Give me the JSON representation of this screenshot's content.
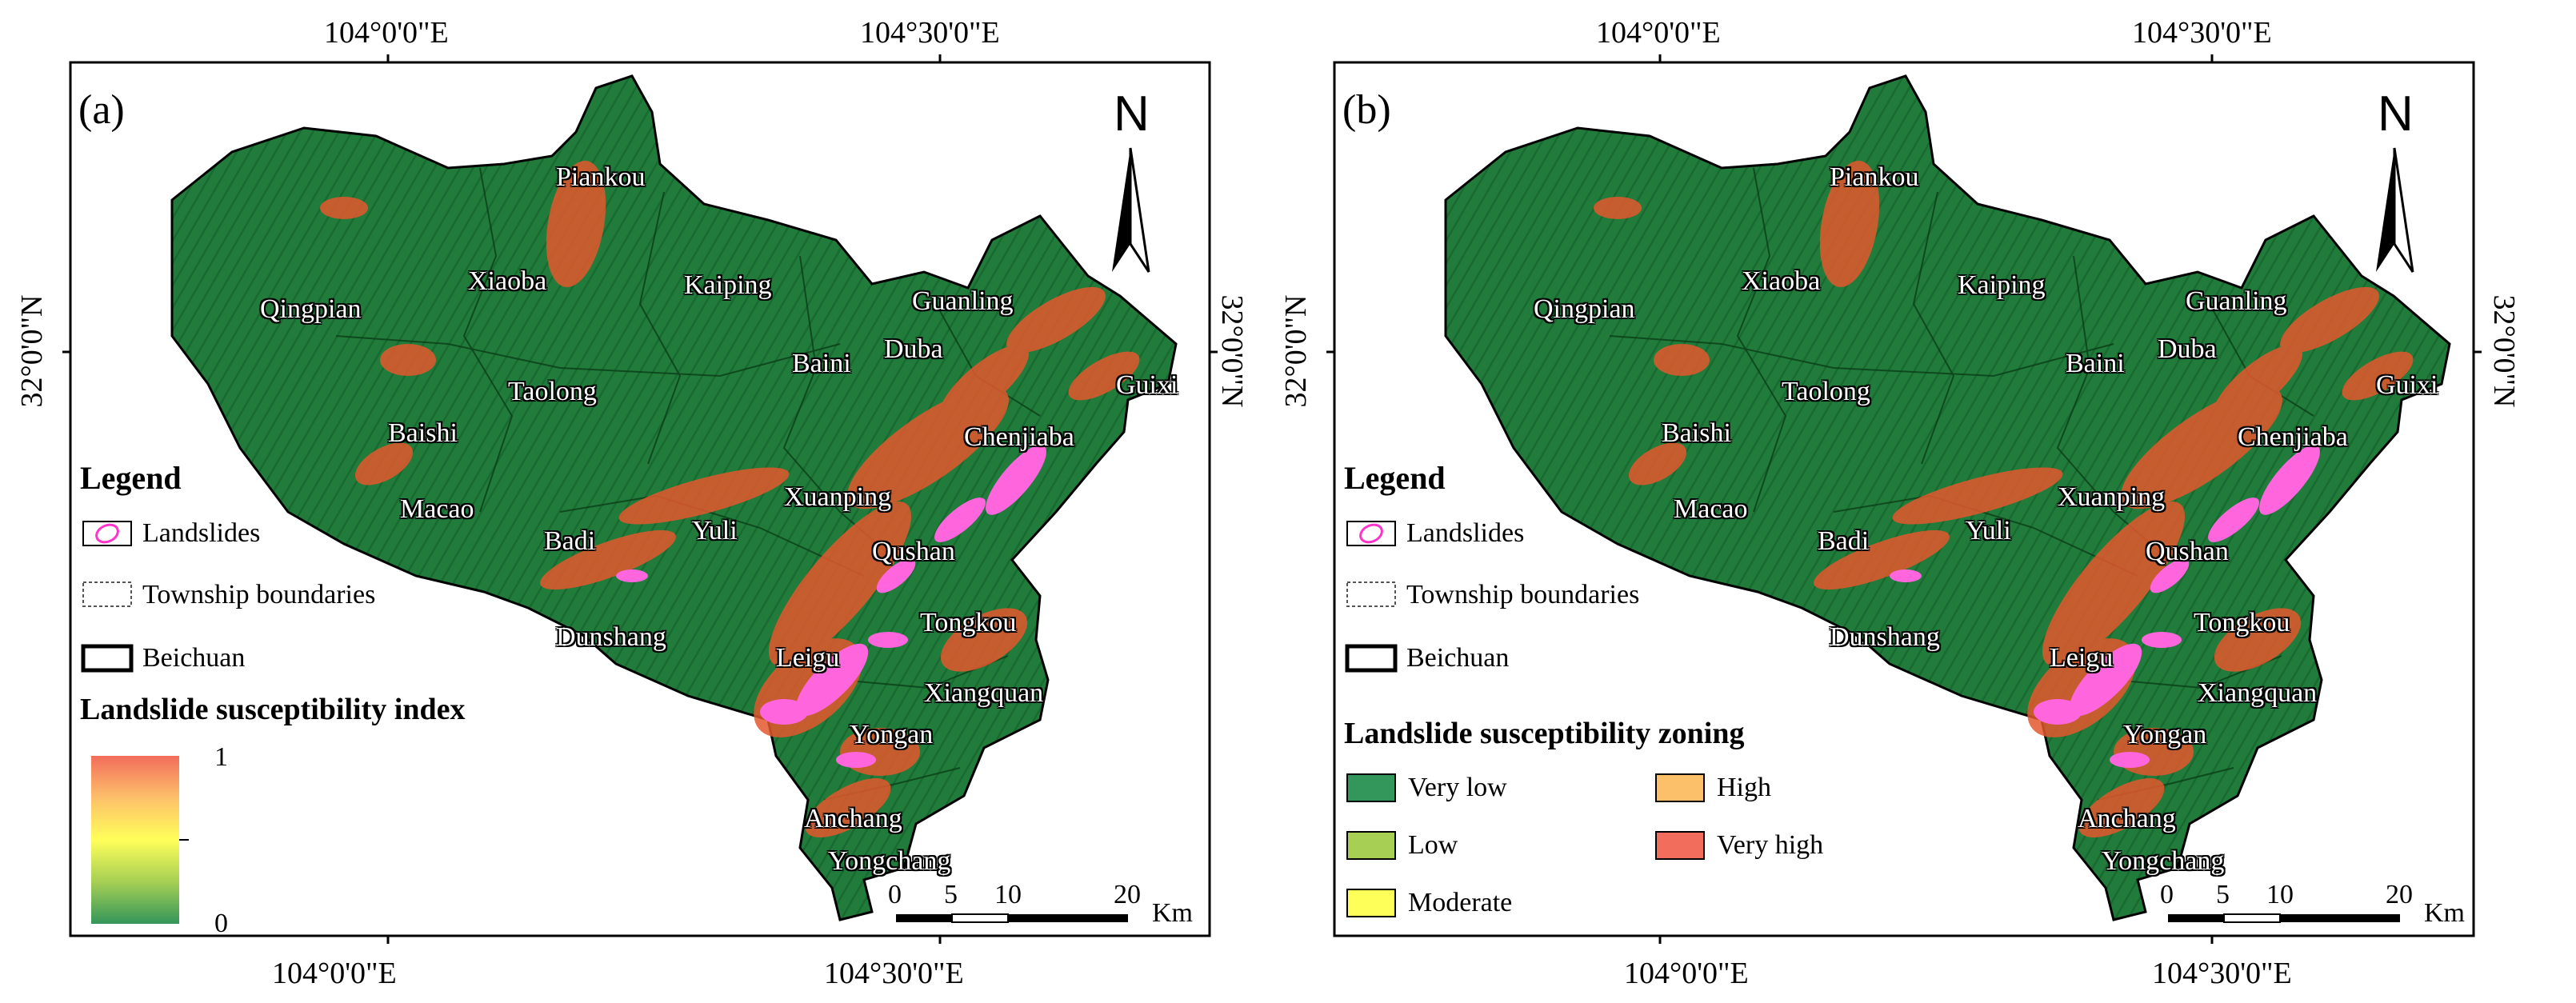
{
  "panels": [
    {
      "label": "(a)",
      "coords": {
        "lon_left": "104°0'0\"E",
        "lon_right": "104°30'0\"E",
        "lat": "32°0'0\"N"
      },
      "north": "N",
      "towns": [
        "Piankou",
        "Xiaoba",
        "Kaiping",
        "Qingpian",
        "Guanling",
        "Baini",
        "Duba",
        "Taolong",
        "Guixi",
        "Baishi",
        "Chenjiaba",
        "Macao",
        "Xuanping",
        "Badi",
        "Yuli",
        "Qushan",
        "Dunshang",
        "Tongkou",
        "Leigu",
        "Xiangquan",
        "Yongan",
        "Anchang",
        "Yongchang"
      ],
      "legend": {
        "title": "Legend",
        "items": [
          "Landslides",
          "Township boundaries",
          "Beichuan"
        ],
        "subtitle": "Landslide susceptibility index",
        "gradient_max": "1",
        "gradient_min": "0",
        "gradient_colors": [
          "#f26d5b",
          "#fdc06a",
          "#ffff5a",
          "#a6cf54",
          "#33965a"
        ]
      },
      "scale": {
        "ticks": [
          "0",
          "5",
          "10",
          "20"
        ],
        "unit": "Km"
      }
    },
    {
      "label": "(b)",
      "coords": {
        "lon_left": "104°0'0\"E",
        "lon_right": "104°30'0\"E",
        "lat": "32°0'0\"N"
      },
      "north": "N",
      "towns": [
        "Piankou",
        "Xiaoba",
        "Kaiping",
        "Qingpian",
        "Guanling",
        "Baini",
        "Duba",
        "Taolong",
        "Guixi",
        "Baishi",
        "Chenjiaba",
        "Macao",
        "Xuanping",
        "Badi",
        "Yuli",
        "Qushan",
        "Dunshang",
        "Tongkou",
        "Leigu",
        "Xiangquan",
        "Yongan",
        "Anchang",
        "Yongchang"
      ],
      "legend": {
        "title": "Legend",
        "items": [
          "Landslides",
          "Township boundaries",
          "Beichuan"
        ],
        "subtitle": "Landslide susceptibility zoning",
        "classes": [
          {
            "label": "Very low",
            "color": "#33965a"
          },
          {
            "label": "High",
            "color": "#fdc06a"
          },
          {
            "label": "Low",
            "color": "#a6cf54"
          },
          {
            "label": "Very high",
            "color": "#f26d5b"
          },
          {
            "label": "Moderate",
            "color": "#ffff5a"
          }
        ]
      },
      "scale": {
        "ticks": [
          "0",
          "5",
          "10",
          "20"
        ],
        "unit": "Km"
      }
    }
  ],
  "colors": {
    "map_green": "#1f7a3a",
    "landslide": "#ff66dd",
    "high_zone": "#e4582e"
  }
}
